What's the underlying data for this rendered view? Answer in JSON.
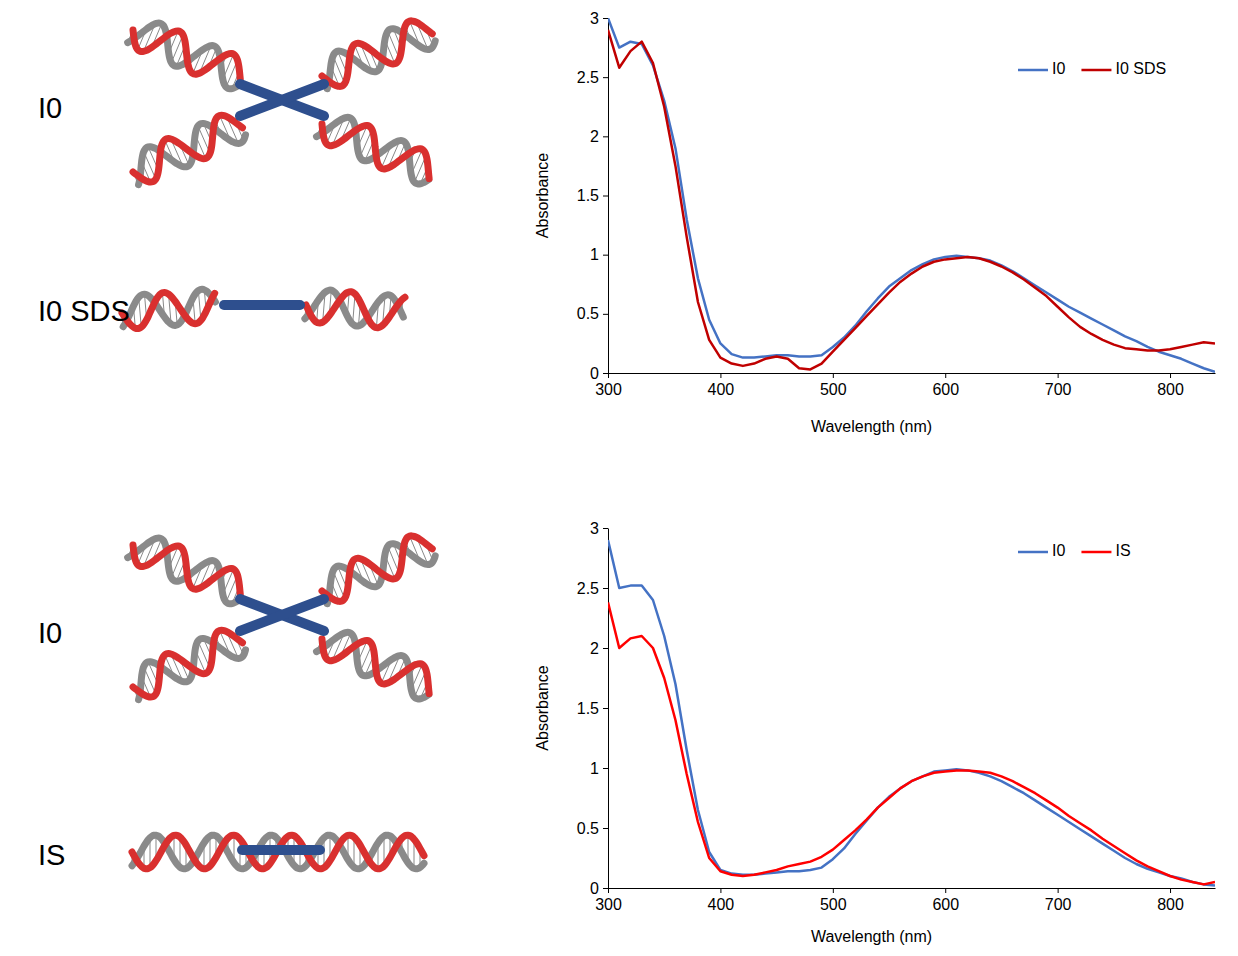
{
  "chart_data": [
    {
      "type": "line",
      "annotations": [
        "I0",
        "I0 SDS"
      ],
      "x_label": "Wavelength (nm)",
      "y_label": "Absorbance",
      "x": [
        300,
        310,
        320,
        330,
        340,
        350,
        360,
        370,
        380,
        390,
        400,
        410,
        420,
        430,
        440,
        450,
        460,
        470,
        480,
        490,
        500,
        510,
        520,
        530,
        540,
        550,
        560,
        570,
        580,
        590,
        600,
        610,
        620,
        630,
        640,
        650,
        660,
        670,
        680,
        690,
        700,
        710,
        720,
        730,
        740,
        750,
        760,
        770,
        780,
        790,
        800,
        810,
        820,
        830,
        840
      ],
      "xlim": [
        300,
        840
      ],
      "xticks": [
        300,
        400,
        500,
        600,
        700,
        800
      ],
      "ylim": [
        0,
        3
      ],
      "yticks": [
        0,
        0.5,
        1,
        1.5,
        2,
        2.5,
        3
      ],
      "grid": false,
      "legend": "upper right",
      "series": [
        {
          "name": "I0",
          "color": "#4472c4",
          "values": [
            3.0,
            2.75,
            2.8,
            2.78,
            2.6,
            2.3,
            1.9,
            1.3,
            0.8,
            0.45,
            0.25,
            0.16,
            0.13,
            0.13,
            0.14,
            0.15,
            0.15,
            0.14,
            0.14,
            0.15,
            0.22,
            0.3,
            0.4,
            0.52,
            0.63,
            0.73,
            0.8,
            0.87,
            0.92,
            0.96,
            0.98,
            0.99,
            0.98,
            0.97,
            0.95,
            0.91,
            0.86,
            0.8,
            0.74,
            0.68,
            0.62,
            0.56,
            0.51,
            0.46,
            0.41,
            0.36,
            0.31,
            0.27,
            0.22,
            0.18,
            0.15,
            0.12,
            0.08,
            0.04,
            0.01
          ]
        },
        {
          "name": "I0 SDS",
          "color": "#c00000",
          "values": [
            2.9,
            2.58,
            2.72,
            2.8,
            2.62,
            2.25,
            1.75,
            1.15,
            0.6,
            0.28,
            0.13,
            0.08,
            0.06,
            0.08,
            0.12,
            0.14,
            0.12,
            0.04,
            0.03,
            0.08,
            0.18,
            0.28,
            0.38,
            0.48,
            0.58,
            0.68,
            0.77,
            0.84,
            0.9,
            0.94,
            0.96,
            0.97,
            0.98,
            0.97,
            0.94,
            0.9,
            0.85,
            0.79,
            0.72,
            0.65,
            0.56,
            0.47,
            0.39,
            0.33,
            0.28,
            0.24,
            0.21,
            0.2,
            0.19,
            0.19,
            0.2,
            0.22,
            0.24,
            0.26,
            0.25
          ]
        }
      ]
    },
    {
      "type": "line",
      "annotations": [
        "I0",
        "IS"
      ],
      "x_label": "Wavelength (nm)",
      "y_label": "Absorbance",
      "x": [
        300,
        310,
        320,
        330,
        340,
        350,
        360,
        370,
        380,
        390,
        400,
        410,
        420,
        430,
        440,
        450,
        460,
        470,
        480,
        490,
        500,
        510,
        520,
        530,
        540,
        550,
        560,
        570,
        580,
        590,
        600,
        610,
        620,
        630,
        640,
        650,
        660,
        670,
        680,
        690,
        700,
        710,
        720,
        730,
        740,
        750,
        760,
        770,
        780,
        790,
        800,
        810,
        820,
        830,
        840
      ],
      "xlim": [
        300,
        840
      ],
      "xticks": [
        300,
        400,
        500,
        600,
        700,
        800
      ],
      "ylim": [
        0,
        3
      ],
      "yticks": [
        0,
        0.5,
        1,
        1.5,
        2,
        2.5,
        3
      ],
      "grid": false,
      "legend": "upper right",
      "series": [
        {
          "name": "I0",
          "color": "#4472c4",
          "values": [
            2.9,
            2.5,
            2.52,
            2.52,
            2.4,
            2.1,
            1.7,
            1.15,
            0.65,
            0.3,
            0.15,
            0.12,
            0.11,
            0.11,
            0.12,
            0.13,
            0.14,
            0.14,
            0.15,
            0.17,
            0.24,
            0.33,
            0.45,
            0.56,
            0.67,
            0.76,
            0.83,
            0.89,
            0.93,
            0.97,
            0.98,
            0.99,
            0.98,
            0.96,
            0.93,
            0.89,
            0.84,
            0.79,
            0.73,
            0.67,
            0.61,
            0.55,
            0.49,
            0.43,
            0.37,
            0.31,
            0.25,
            0.2,
            0.16,
            0.13,
            0.1,
            0.08,
            0.05,
            0.03,
            0.02
          ]
        },
        {
          "name": "IS",
          "color": "#ff0000",
          "values": [
            2.38,
            2.0,
            2.08,
            2.1,
            2.0,
            1.75,
            1.4,
            0.95,
            0.55,
            0.25,
            0.14,
            0.11,
            0.1,
            0.11,
            0.13,
            0.15,
            0.18,
            0.2,
            0.22,
            0.26,
            0.32,
            0.4,
            0.48,
            0.57,
            0.67,
            0.75,
            0.83,
            0.89,
            0.93,
            0.96,
            0.97,
            0.98,
            0.98,
            0.97,
            0.96,
            0.93,
            0.89,
            0.84,
            0.79,
            0.73,
            0.67,
            0.6,
            0.54,
            0.48,
            0.41,
            0.35,
            0.29,
            0.23,
            0.18,
            0.14,
            0.1,
            0.07,
            0.05,
            0.03,
            0.05
          ]
        }
      ]
    }
  ]
}
